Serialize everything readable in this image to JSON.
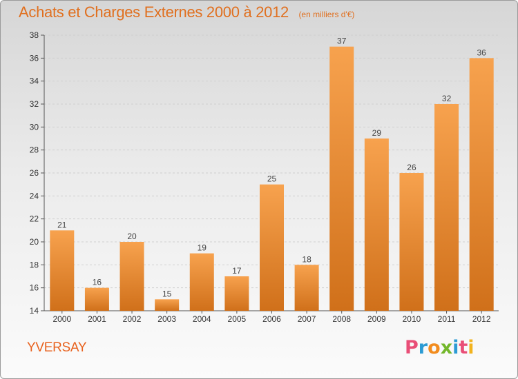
{
  "header": {
    "title": "Achats et Charges Externes 2000 à 2012",
    "subtitle": "(en milliers d'€)"
  },
  "footer": {
    "commune": "YVERSAY",
    "logo_text": "Proxiti",
    "logo_colors": [
      "#e94e77",
      "#2b9bd4",
      "#f28c1e",
      "#73b72b",
      "#2b9bd4",
      "#e94e77",
      "#f2b31e"
    ]
  },
  "colors": {
    "bar_top": "#f7a24e",
    "bar_bottom": "#d0701a",
    "accent": "#e07020"
  },
  "chart_data": {
    "type": "bar",
    "title": "Achats et Charges Externes 2000 à 2012",
    "subtitle": "(en milliers d'€)",
    "categories": [
      "2000",
      "2001",
      "2002",
      "2003",
      "2004",
      "2005",
      "2006",
      "2007",
      "2008",
      "2009",
      "2010",
      "2011",
      "2012"
    ],
    "values": [
      21,
      16,
      20,
      15,
      19,
      17,
      25,
      18,
      37,
      29,
      26,
      32,
      36
    ],
    "ylim": [
      14,
      38
    ],
    "yticks": [
      14,
      16,
      18,
      20,
      22,
      24,
      26,
      28,
      30,
      32,
      34,
      36,
      38
    ],
    "grid": true,
    "data_labels": true
  }
}
